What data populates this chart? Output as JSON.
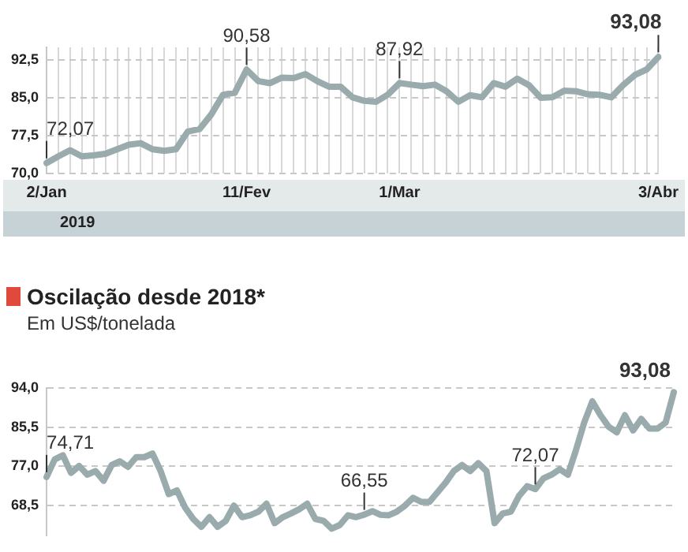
{
  "chart_data": [
    {
      "type": "line",
      "xlabel": "2019",
      "categories": [
        "2/Jan",
        null,
        null,
        null,
        null,
        null,
        null,
        null,
        null,
        null,
        null,
        null,
        null,
        null,
        null,
        null,
        null,
        "11/Fev",
        null,
        null,
        null,
        null,
        null,
        null,
        null,
        null,
        null,
        null,
        null,
        null,
        "1/Mar",
        null,
        null,
        null,
        null,
        null,
        null,
        null,
        null,
        null,
        null,
        null,
        null,
        null,
        null,
        null,
        null,
        null,
        null,
        null,
        null,
        null,
        "3/Abr"
      ],
      "series": [
        {
          "color": "#9aabad",
          "values": [
            72.07,
            73.4,
            74.6,
            73.4,
            73.6,
            73.9,
            74.8,
            75.7,
            76,
            74.8,
            74.5,
            74.8,
            78.3,
            78.8,
            81.7,
            85.6,
            86,
            90.58,
            88.3,
            87.9,
            89,
            88.9,
            89.7,
            88.3,
            87.2,
            87.2,
            85.1,
            84.4,
            84.2,
            85.6,
            87.92,
            87.6,
            87.3,
            87.6,
            86.3,
            84.2,
            85.5,
            85.1,
            87.9,
            87.2,
            88.8,
            87.5,
            85,
            85.1,
            86.4,
            86.3,
            85.7,
            85.6,
            85.1,
            87.5,
            89.5,
            90.6,
            93.08
          ]
        }
      ],
      "ylim": [
        70,
        95
      ],
      "yticks": [
        {
          "value": 70,
          "label": "70,0"
        },
        {
          "value": 77.5,
          "label": "77,5"
        },
        {
          "value": 85,
          "label": "85,0"
        },
        {
          "value": 92.5,
          "label": "92,5"
        }
      ],
      "grid": true,
      "marker": "none",
      "line_style": "solid",
      "annotations": [
        {
          "text": "72,07",
          "x": "2/Jan",
          "y": 72.07
        },
        {
          "text": "90,58",
          "x": "11/Fev",
          "y": 90.58
        },
        {
          "text": "87,92",
          "x": "1/Mar",
          "y": 87.92
        },
        {
          "text": "93,08",
          "x": "3/Abr",
          "y": 93.08
        }
      ]
    },
    {
      "type": "line",
      "title": "Oscilação desde 2018*",
      "subtitle": "Em US$/tonelada",
      "categories": [
        null,
        null,
        null,
        null,
        null,
        null,
        null,
        null,
        null,
        null,
        null,
        null,
        null,
        null,
        null,
        null,
        null,
        null,
        null,
        null,
        null,
        null,
        null,
        null,
        null,
        null,
        null,
        null,
        null,
        null,
        null,
        null,
        null,
        null,
        null,
        null,
        null,
        null,
        null,
        null,
        null,
        null,
        null,
        null,
        null,
        null,
        null,
        null,
        null,
        null,
        null,
        null,
        null,
        null,
        null,
        null,
        null,
        null,
        null,
        null,
        null,
        null,
        null,
        null,
        null,
        null,
        null,
        null,
        null,
        null,
        null,
        null,
        null,
        null,
        null,
        null,
        null,
        null
      ],
      "series": [
        {
          "color": "#9aabad",
          "values": [
            74.71,
            78.5,
            79.4,
            75.6,
            77.1,
            75.2,
            76,
            73.9,
            77.3,
            78.1,
            76.9,
            79,
            79,
            79.8,
            76,
            71,
            71.8,
            68.1,
            65.6,
            63.9,
            66,
            63.9,
            65.2,
            68.5,
            66,
            66.4,
            67.2,
            68.9,
            64.7,
            66,
            66.8,
            67.7,
            68.9,
            65.6,
            65.2,
            63.5,
            64.3,
            66.4,
            66.0,
            66.55,
            67.3,
            66.5,
            66.4,
            67.2,
            68.5,
            70.2,
            69.3,
            69.3,
            71.4,
            73.5,
            76,
            77.3,
            76,
            77.7,
            76,
            64.7,
            66.8,
            67.2,
            70.6,
            72.7,
            72.07,
            74.4,
            75.2,
            76.4,
            75.2,
            80.6,
            86.5,
            91.1,
            88.1,
            85.6,
            84.4,
            88.1,
            84.8,
            87.3,
            85.2,
            85.2,
            86.5,
            93.08
          ]
        }
      ],
      "ylim": [
        62,
        94
      ],
      "yticks": [
        {
          "value": 68.5,
          "label": "68,5"
        },
        {
          "value": 77,
          "label": "77,0"
        },
        {
          "value": 85.5,
          "label": "85,5"
        },
        {
          "value": 94,
          "label": "94,0"
        }
      ],
      "grid": "y",
      "tick_labels": "y",
      "marker": "none",
      "line_style": "solid",
      "annotations": [
        {
          "text": "74,71",
          "y": 74.71
        },
        {
          "text": "66,55",
          "y": 66.55
        },
        {
          "text": "72,07",
          "y": 72.07
        },
        "93,08"
      ]
    }
  ]
}
